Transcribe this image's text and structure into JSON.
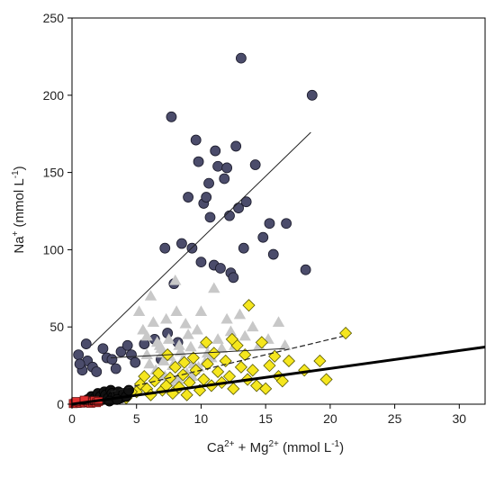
{
  "chart_data": {
    "type": "scatter",
    "xlim": [
      0,
      32
    ],
    "ylim": [
      0,
      250
    ],
    "x_ticks": [
      0,
      5,
      10,
      15,
      20,
      25,
      30
    ],
    "y_ticks": [
      0,
      50,
      100,
      150,
      200,
      250
    ],
    "grid": false,
    "legend": "none",
    "xlabel": {
      "base1": "Ca",
      "sup1": "2+",
      "mid": " + Mg",
      "sup2": "2+",
      "rest": " (mmol L",
      "sup3": "-1",
      "end": ")"
    },
    "ylabel": {
      "base": "Na",
      "sup1": "+",
      "rest": " (mmol L",
      "sup2": "-1",
      "end": ")"
    },
    "series": [
      {
        "marker": "circle",
        "fill": "#4b4c6b",
        "stroke": "#1a1a2a",
        "points": [
          [
            0.5,
            32
          ],
          [
            0.8,
            22
          ],
          [
            1.1,
            39
          ],
          [
            1.2,
            28
          ],
          [
            0.6,
            26
          ],
          [
            1.6,
            24
          ],
          [
            1.9,
            21
          ],
          [
            2.4,
            36
          ],
          [
            2.7,
            30
          ],
          [
            3.1,
            29
          ],
          [
            3.4,
            23
          ],
          [
            3.8,
            34
          ],
          [
            4.3,
            38
          ],
          [
            4.6,
            32
          ],
          [
            4.9,
            27
          ],
          [
            5.6,
            39
          ],
          [
            6.4,
            42
          ],
          [
            6.9,
            29
          ],
          [
            7.2,
            101
          ],
          [
            7.4,
            46
          ],
          [
            7.7,
            186
          ],
          [
            7.9,
            78
          ],
          [
            8.2,
            40
          ],
          [
            8.5,
            104
          ],
          [
            9.0,
            134
          ],
          [
            9.3,
            101
          ],
          [
            9.6,
            171
          ],
          [
            9.8,
            157
          ],
          [
            10.0,
            92
          ],
          [
            10.2,
            130
          ],
          [
            10.4,
            134
          ],
          [
            10.6,
            143
          ],
          [
            10.7,
            121
          ],
          [
            11.0,
            90
          ],
          [
            11.1,
            164
          ],
          [
            11.3,
            154
          ],
          [
            11.5,
            88
          ],
          [
            11.8,
            146
          ],
          [
            12.0,
            153
          ],
          [
            12.2,
            122
          ],
          [
            12.3,
            85
          ],
          [
            12.5,
            82
          ],
          [
            12.7,
            167
          ],
          [
            12.9,
            127
          ],
          [
            13.1,
            224
          ],
          [
            13.3,
            101
          ],
          [
            13.5,
            131
          ],
          [
            14.2,
            155
          ],
          [
            14.8,
            108
          ],
          [
            15.3,
            117
          ],
          [
            15.6,
            97
          ],
          [
            16.6,
            117
          ],
          [
            18.1,
            87
          ],
          [
            18.6,
            200
          ]
        ]
      },
      {
        "marker": "triangle",
        "fill": "#c8c8c8",
        "stroke": "#c8c8c8",
        "points": [
          [
            5.2,
            60
          ],
          [
            5.5,
            48
          ],
          [
            5.8,
            44
          ],
          [
            6.1,
            70
          ],
          [
            6.3,
            53
          ],
          [
            6.6,
            40
          ],
          [
            6.9,
            36
          ],
          [
            7.0,
            33
          ],
          [
            7.1,
            28
          ],
          [
            7.3,
            55
          ],
          [
            7.5,
            42
          ],
          [
            7.6,
            31
          ],
          [
            7.8,
            25
          ],
          [
            8.0,
            80
          ],
          [
            8.1,
            60
          ],
          [
            8.3,
            38
          ],
          [
            8.4,
            34
          ],
          [
            8.6,
            29
          ],
          [
            8.8,
            52
          ],
          [
            9.0,
            45
          ],
          [
            9.2,
            37
          ],
          [
            9.4,
            26
          ],
          [
            9.5,
            22
          ],
          [
            9.7,
            48
          ],
          [
            10.0,
            60
          ],
          [
            10.2,
            39
          ],
          [
            10.5,
            33
          ],
          [
            10.8,
            30
          ],
          [
            11.0,
            75
          ],
          [
            11.3,
            42
          ],
          [
            11.6,
            36
          ],
          [
            12.0,
            55
          ],
          [
            12.3,
            47
          ],
          [
            12.6,
            38
          ],
          [
            13.0,
            58
          ],
          [
            13.4,
            44
          ],
          [
            14.0,
            50
          ],
          [
            14.5,
            38
          ],
          [
            15.2,
            42
          ],
          [
            16.0,
            53
          ],
          [
            16.5,
            38
          ],
          [
            7.2,
            18
          ],
          [
            7.6,
            14
          ],
          [
            8.2,
            16
          ],
          [
            8.9,
            20
          ],
          [
            9.3,
            18
          ],
          [
            9.8,
            24
          ],
          [
            10.3,
            27
          ],
          [
            6.5,
            22
          ],
          [
            6.0,
            26
          ],
          [
            5.8,
            32
          ],
          [
            6.8,
            38
          ]
        ]
      },
      {
        "marker": "diamond",
        "fill": "#f5e61e",
        "stroke": "#5a5a00",
        "points": [
          [
            4.2,
            4
          ],
          [
            5.0,
            8
          ],
          [
            5.3,
            13
          ],
          [
            5.8,
            10
          ],
          [
            6.1,
            6
          ],
          [
            6.4,
            15
          ],
          [
            6.7,
            20
          ],
          [
            7.0,
            9
          ],
          [
            7.3,
            12
          ],
          [
            7.6,
            17
          ],
          [
            7.8,
            7
          ],
          [
            8.0,
            24
          ],
          [
            8.3,
            11
          ],
          [
            8.6,
            19
          ],
          [
            8.9,
            6
          ],
          [
            9.1,
            14
          ],
          [
            9.4,
            30
          ],
          [
            9.6,
            22
          ],
          [
            9.9,
            9
          ],
          [
            10.2,
            16
          ],
          [
            10.5,
            26
          ],
          [
            10.8,
            12
          ],
          [
            11.0,
            33
          ],
          [
            11.3,
            21
          ],
          [
            11.6,
            14
          ],
          [
            11.9,
            28
          ],
          [
            12.2,
            18
          ],
          [
            12.5,
            10
          ],
          [
            12.8,
            38
          ],
          [
            13.1,
            24
          ],
          [
            13.4,
            32
          ],
          [
            13.6,
            16
          ],
          [
            14.0,
            22
          ],
          [
            14.3,
            12
          ],
          [
            14.7,
            40
          ],
          [
            15.0,
            10
          ],
          [
            15.3,
            25
          ],
          [
            15.7,
            31
          ],
          [
            16.0,
            18
          ],
          [
            16.3,
            15
          ],
          [
            16.8,
            28
          ],
          [
            18.0,
            22
          ],
          [
            19.2,
            28
          ],
          [
            19.7,
            16
          ],
          [
            21.2,
            46
          ],
          [
            13.7,
            64
          ],
          [
            12.4,
            42
          ],
          [
            10.4,
            40
          ],
          [
            7.4,
            32
          ],
          [
            8.7,
            27
          ],
          [
            5.6,
            18
          ],
          [
            4.6,
            8
          ]
        ]
      },
      {
        "marker": "circle",
        "fill": "#111111",
        "stroke": "#000000",
        "points": [
          [
            1.2,
            3
          ],
          [
            1.5,
            5
          ],
          [
            1.8,
            4
          ],
          [
            2.0,
            7
          ],
          [
            2.2,
            5
          ],
          [
            2.4,
            3
          ],
          [
            2.5,
            8
          ],
          [
            2.6,
            6
          ],
          [
            2.8,
            4
          ],
          [
            3.0,
            9
          ],
          [
            3.1,
            7
          ],
          [
            3.2,
            5
          ],
          [
            3.4,
            6
          ],
          [
            3.6,
            8
          ],
          [
            3.8,
            4
          ],
          [
            4.0,
            7
          ],
          [
            4.2,
            5
          ],
          [
            4.4,
            9
          ],
          [
            2.9,
            2
          ],
          [
            3.5,
            3
          ]
        ]
      },
      {
        "marker": "square",
        "fill": "#e03030",
        "stroke": "#6a1010",
        "points": [
          [
            0.1,
            0.4
          ],
          [
            0.25,
            0.9
          ],
          [
            0.4,
            0.5
          ],
          [
            0.55,
            1.3
          ],
          [
            0.7,
            0.7
          ],
          [
            0.85,
            1.6
          ],
          [
            1.0,
            0.9
          ],
          [
            1.15,
            2.0
          ],
          [
            1.3,
            1.2
          ],
          [
            1.45,
            0.6
          ],
          [
            1.6,
            1.4
          ],
          [
            1.75,
            2.2
          ],
          [
            1.9,
            1.0
          ],
          [
            2.05,
            1.8
          ],
          [
            0.3,
            1.7
          ],
          [
            0.95,
            2.6
          ]
        ]
      }
    ],
    "regression_lines": [
      {
        "x": [
          1.5,
          18.5
        ],
        "y": [
          38,
          176
        ],
        "stroke": "#222222",
        "width": 1,
        "dash": ""
      },
      {
        "x": [
          3.0,
          16.5
        ],
        "y": [
          30,
          36
        ],
        "stroke": "#222222",
        "width": 1,
        "dash": ""
      },
      {
        "x": [
          3.0,
          21.0
        ],
        "y": [
          8,
          44
        ],
        "stroke": "#222222",
        "width": 1.2,
        "dash": "6,3"
      },
      {
        "x": [
          0.0,
          32.0
        ],
        "y": [
          0,
          37
        ],
        "stroke": "#000000",
        "width": 3,
        "dash": ""
      }
    ]
  }
}
